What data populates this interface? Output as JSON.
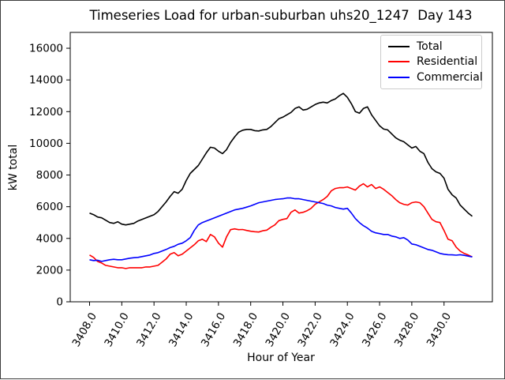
{
  "chart_data": {
    "type": "line",
    "title": "Timeseries Load for urban-suburban uhs20_1247  Day 143",
    "xlabel": "Hour of Year",
    "ylabel": "kW total",
    "xlim": [
      3406.8,
      3433.0
    ],
    "ylim": [
      0,
      17000
    ],
    "grid": false,
    "legend_position": "upper right",
    "x_start": 3408.0,
    "x_step": 0.25,
    "xticks": [
      3408,
      3410,
      3412,
      3414,
      3416,
      3418,
      3420,
      3422,
      3424,
      3426,
      3428,
      3430
    ],
    "xtick_labels": [
      "3408.0",
      "3410.0",
      "3412.0",
      "3414.0",
      "3416.0",
      "3418.0",
      "3420.0",
      "3422.0",
      "3424.0",
      "3426.0",
      "3428.0",
      "3430.0"
    ],
    "yticks": [
      0,
      2000,
      4000,
      6000,
      8000,
      10000,
      12000,
      14000,
      16000
    ],
    "ytick_labels": [
      "0",
      "2000",
      "4000",
      "6000",
      "8000",
      "10000",
      "12000",
      "14000",
      "16000"
    ],
    "series": [
      {
        "name": "Total",
        "color": "#000000",
        "values": [
          5600,
          5500,
          5350,
          5300,
          5150,
          5000,
          4950,
          5050,
          4900,
          4850,
          4900,
          4950,
          5100,
          5200,
          5300,
          5400,
          5500,
          5700,
          6000,
          6300,
          6650,
          6950,
          6850,
          7100,
          7650,
          8100,
          8350,
          8600,
          9000,
          9400,
          9750,
          9700,
          9500,
          9350,
          9600,
          10050,
          10400,
          10700,
          10830,
          10880,
          10880,
          10800,
          10780,
          10850,
          10880,
          11050,
          11300,
          11550,
          11650,
          11800,
          11950,
          12200,
          12300,
          12100,
          12150,
          12300,
          12450,
          12550,
          12600,
          12550,
          12700,
          12800,
          13000,
          13150,
          12900,
          12500,
          12000,
          11900,
          12200,
          12300,
          11800,
          11450,
          11100,
          10900,
          10850,
          10600,
          10350,
          10200,
          10100,
          9900,
          9700,
          9800,
          9500,
          9350,
          8800,
          8400,
          8200,
          8100,
          7800,
          7100,
          6750,
          6550,
          6100,
          5850,
          5600,
          5400
        ]
      },
      {
        "name": "Residential",
        "color": "#ff0000",
        "values": [
          2950,
          2800,
          2550,
          2450,
          2300,
          2250,
          2200,
          2150,
          2150,
          2100,
          2150,
          2150,
          2150,
          2150,
          2200,
          2200,
          2250,
          2300,
          2500,
          2700,
          3000,
          3100,
          2900,
          3000,
          3200,
          3400,
          3600,
          3850,
          3950,
          3800,
          4250,
          4100,
          3700,
          3450,
          4100,
          4550,
          4600,
          4550,
          4560,
          4500,
          4450,
          4420,
          4400,
          4480,
          4520,
          4700,
          4850,
          5120,
          5200,
          5250,
          5650,
          5800,
          5600,
          5650,
          5750,
          5900,
          6150,
          6300,
          6450,
          6650,
          7000,
          7150,
          7200,
          7200,
          7250,
          7150,
          7050,
          7300,
          7450,
          7250,
          7400,
          7150,
          7250,
          7100,
          6900,
          6700,
          6450,
          6250,
          6150,
          6100,
          6250,
          6300,
          6250,
          6000,
          5600,
          5200,
          5050,
          5000,
          4500,
          3950,
          3850,
          3450,
          3200,
          3050,
          2950,
          2830
        ]
      },
      {
        "name": "Commercial",
        "color": "#0000ff",
        "values": [
          2650,
          2600,
          2620,
          2550,
          2600,
          2650,
          2680,
          2650,
          2650,
          2700,
          2750,
          2780,
          2800,
          2850,
          2900,
          2950,
          3050,
          3100,
          3200,
          3300,
          3420,
          3500,
          3630,
          3700,
          3850,
          4050,
          4500,
          4850,
          5000,
          5100,
          5200,
          5300,
          5400,
          5500,
          5600,
          5700,
          5800,
          5850,
          5900,
          5970,
          6050,
          6150,
          6250,
          6300,
          6350,
          6400,
          6450,
          6480,
          6500,
          6550,
          6550,
          6500,
          6500,
          6450,
          6400,
          6350,
          6300,
          6250,
          6200,
          6100,
          6050,
          5950,
          5900,
          5850,
          5900,
          5600,
          5250,
          5000,
          4800,
          4650,
          4450,
          4350,
          4300,
          4250,
          4250,
          4150,
          4100,
          4000,
          4050,
          3900,
          3650,
          3600,
          3500,
          3400,
          3300,
          3250,
          3150,
          3050,
          3000,
          2970,
          2960,
          2940,
          2970,
          2930,
          2880,
          2830
        ]
      }
    ]
  }
}
